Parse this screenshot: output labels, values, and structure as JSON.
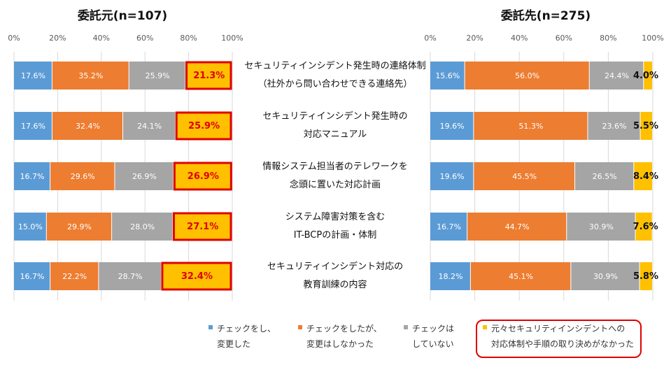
{
  "chart_data": [
    {
      "type": "bar",
      "orientation": "horizontal",
      "stacked": true,
      "title": "委託元(n=107)",
      "x_ticks": [
        "0%",
        "20%",
        "40%",
        "60%",
        "80%",
        "100%"
      ],
      "xlim": [
        0,
        100
      ],
      "categories": [
        "セキュリティインシデント発生時の連絡体制（社外から問い合わせできる連絡先）",
        "セキュリティインシデント発生時の対応マニュアル",
        "情報システム担当者のテレワークを念頭に置いた対応計画",
        "システム障害対策を含むIT-BCPの計画・体制",
        "セキュリティインシデント対応の教育訓練の内容"
      ],
      "series": [
        {
          "name": "チェックをし、変更した",
          "color": "#5b9bd5",
          "values": [
            17.6,
            17.6,
            16.7,
            15.0,
            16.7
          ]
        },
        {
          "name": "チェックをしたが、変更はしなかった",
          "color": "#ed7d31",
          "values": [
            35.2,
            32.4,
            29.6,
            29.9,
            22.2
          ]
        },
        {
          "name": "チェックはしていない",
          "color": "#a5a5a5",
          "values": [
            25.9,
            24.1,
            26.9,
            28.0,
            28.7
          ]
        },
        {
          "name": "元々セキュリティインシデントへの対応体制や手順の取り決めがなかった",
          "color": "#ffc000",
          "values": [
            21.3,
            25.9,
            26.9,
            27.1,
            32.4
          ]
        }
      ],
      "labels": [
        [
          "17.6%",
          "35.2%",
          "25.9%",
          "21.3%"
        ],
        [
          "17.6%",
          "32.4%",
          "24.1%",
          "25.9%"
        ],
        [
          "16.7%",
          "29.6%",
          "26.9%",
          "26.9%"
        ],
        [
          "15.0%",
          "29.9%",
          "28.0%",
          "27.1%"
        ],
        [
          "16.7%",
          "22.2%",
          "28.7%",
          "32.4%"
        ]
      ],
      "highlight_series": 3
    },
    {
      "type": "bar",
      "orientation": "horizontal",
      "stacked": true,
      "title": "委託先(n=275)",
      "x_ticks": [
        "0%",
        "20%",
        "40%",
        "60%",
        "80%",
        "100%"
      ],
      "xlim": [
        0,
        100
      ],
      "series": [
        {
          "name": "チェックをし、変更した",
          "color": "#5b9bd5",
          "values": [
            15.6,
            19.6,
            19.6,
            16.7,
            18.2
          ]
        },
        {
          "name": "チェックをしたが、変更はしなかった",
          "color": "#ed7d31",
          "values": [
            56.0,
            51.3,
            45.5,
            44.7,
            45.1
          ]
        },
        {
          "name": "チェックはしていない",
          "color": "#a5a5a5",
          "values": [
            24.4,
            23.6,
            26.5,
            30.9,
            30.9
          ]
        },
        {
          "name": "元々セキュリティインシデントへの対応体制や手順の取り決めがなかった",
          "color": "#ffc000",
          "values": [
            4.0,
            5.5,
            8.4,
            7.6,
            5.8
          ]
        }
      ],
      "labels": [
        [
          "15.6%",
          "56.0%",
          "24.4%",
          "4.0%"
        ],
        [
          "19.6%",
          "51.3%",
          "23.6%",
          "5.5%"
        ],
        [
          "19.6%",
          "45.5%",
          "26.5%",
          "8.4%"
        ],
        [
          "16.7%",
          "44.7%",
          "30.9%",
          "7.6%"
        ],
        [
          "18.2%",
          "45.1%",
          "30.9%",
          "5.8%"
        ]
      ]
    }
  ],
  "center_labels": [
    [
      "セキュリティインシデント発生時の連絡体制",
      "（社外から問い合わせできる連絡先）"
    ],
    [
      "セキュリティインシデント発生時の",
      "対応マニュアル"
    ],
    [
      "情報システム担当者のテレワークを",
      "念頭に置いた対応計画"
    ],
    [
      "システム障害対策を含む",
      "IT-BCPの計画・体制"
    ],
    [
      "セキュリティインシデント対応の",
      "教育訓練の内容"
    ]
  ],
  "legend": [
    {
      "line1": "チェックをし、",
      "line2": "変更した",
      "color": "#5b9bd5"
    },
    {
      "line1": "チェックをしたが、",
      "line2": "変更はしなかった",
      "color": "#ed7d31"
    },
    {
      "line1": "チェックは",
      "line2": "していない",
      "color": "#a5a5a5"
    },
    {
      "line1": "元々セキュリティインシデントへの",
      "line2": "対応体制や手順の取り決めがなかった",
      "color": "#ffc000"
    }
  ]
}
